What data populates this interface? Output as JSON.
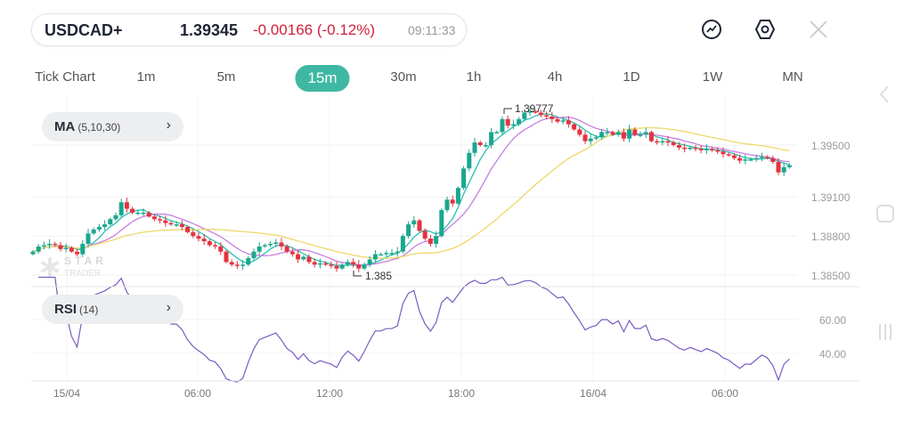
{
  "header": {
    "symbol": "USDCAD+",
    "price": "1.39345",
    "change": "-0.00166 (-0.12%)",
    "time": "09:11:33",
    "icons": [
      "chart-line-icon",
      "settings-hexagon-icon",
      "close-icon"
    ]
  },
  "timeframes": {
    "items": [
      "Tick Chart",
      "1m",
      "5m",
      "15m",
      "30m",
      "1h",
      "4h",
      "1D",
      "1W",
      "MN"
    ],
    "active": "15m"
  },
  "main_indicator": {
    "name": "MA",
    "params": "(5,10,30)"
  },
  "sub_indicator": {
    "name": "RSI",
    "params": "(14)"
  },
  "watermark": {
    "line1": "STAR",
    "line2": "TRADER"
  },
  "colors": {
    "up": "#1ba68e",
    "down": "#e5323e",
    "ma5": "#2bbfb0",
    "ma10": "#c77fe0",
    "ma30": "#ecd86a",
    "rsi": "#7a5cc0",
    "accent": "#3fb8a3"
  },
  "chart_data": {
    "type": "candlestick",
    "price_axis": {
      "ticks": [
        "1.39500",
        "1.39100",
        "1.38800",
        "1.38500"
      ],
      "ylim": [
        1.3845,
        1.3985
      ]
    },
    "rsi_axis": {
      "ticks": [
        "60.00",
        "40.00"
      ]
    },
    "time_axis": {
      "ticks": [
        "15/04",
        "06:00",
        "12:00",
        "18:00",
        "16/04",
        "06:00"
      ]
    },
    "high_label": "1.39777",
    "low_label": "1.385",
    "moving_averages": [
      5,
      10,
      30
    ],
    "rsi_period": 14,
    "closes": [
      1.3868,
      1.3872,
      1.3873,
      1.3874,
      1.3873,
      1.387,
      1.3871,
      1.3868,
      1.3866,
      1.3874,
      1.3882,
      1.3885,
      1.3887,
      1.3889,
      1.3893,
      1.3896,
      1.3906,
      1.3901,
      1.3898,
      1.3898,
      1.3898,
      1.3895,
      1.3893,
      1.3892,
      1.389,
      1.3889,
      1.3889,
      1.3887,
      1.3883,
      1.388,
      1.3878,
      1.3876,
      1.3873,
      1.3872,
      1.3868,
      1.386,
      1.3858,
      1.3857,
      1.3858,
      1.3863,
      1.3868,
      1.3872,
      1.3873,
      1.3874,
      1.3875,
      1.3872,
      1.3868,
      1.3866,
      1.3862,
      1.3864,
      1.386,
      1.3858,
      1.3859,
      1.3858,
      1.3857,
      1.3855,
      1.3858,
      1.386,
      1.3858,
      1.3855,
      1.3858,
      1.3862,
      1.3866,
      1.3866,
      1.3867,
      1.3867,
      1.3868,
      1.388,
      1.3889,
      1.3892,
      1.3884,
      1.3878,
      1.3874,
      1.388,
      1.39,
      1.3908,
      1.3905,
      1.3917,
      1.3932,
      1.3944,
      1.3952,
      1.395,
      1.395,
      1.396,
      1.396,
      1.397,
      1.3965,
      1.3966,
      1.397,
      1.3975,
      1.3976,
      1.3975,
      1.3973,
      1.3972,
      1.397,
      1.3968,
      1.3969,
      1.3966,
      1.3962,
      1.3958,
      1.3953,
      1.3955,
      1.3956,
      1.396,
      1.396,
      1.3958,
      1.396,
      1.3955,
      1.3962,
      1.3958,
      1.3958,
      1.396,
      1.3953,
      1.3952,
      1.3953,
      1.3952,
      1.395,
      1.3948,
      1.3947,
      1.3948,
      1.3947,
      1.3946,
      1.3947,
      1.3946,
      1.3945,
      1.3943,
      1.3942,
      1.394,
      1.3938,
      1.3939,
      1.3939,
      1.394,
      1.3941,
      1.394,
      1.3937,
      1.3929,
      1.3933,
      1.39345
    ]
  }
}
